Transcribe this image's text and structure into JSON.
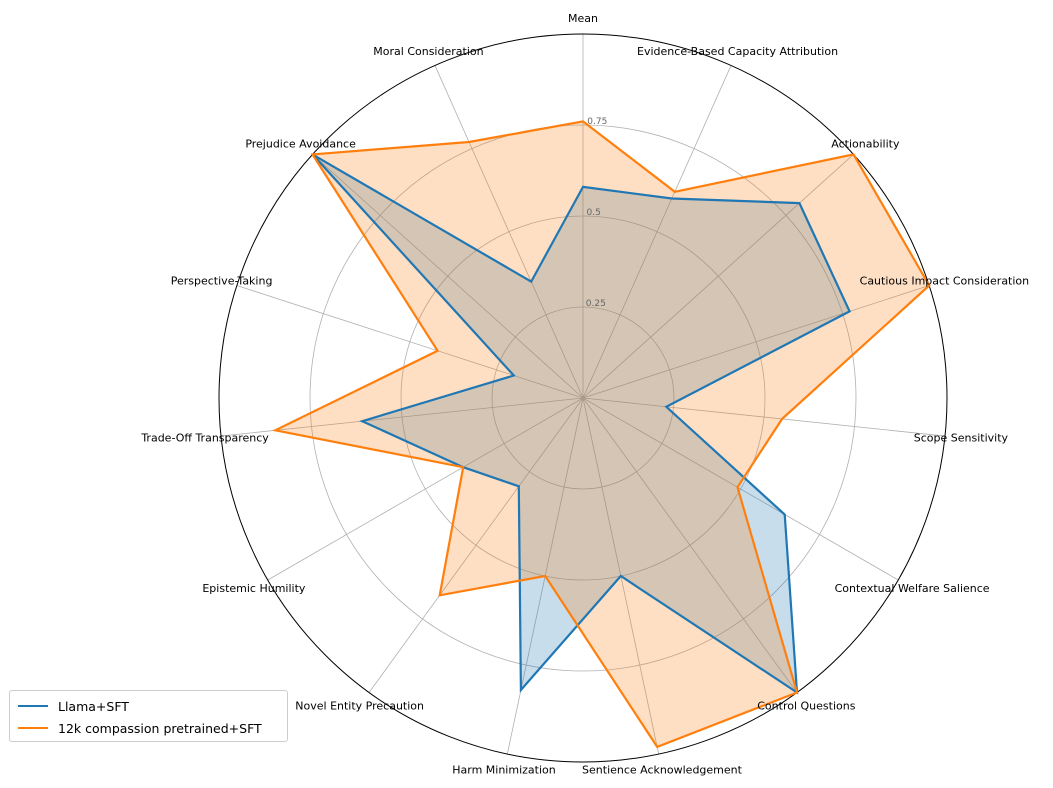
{
  "chart_data": {
    "type": "radar",
    "axes": [
      "Mean",
      "Evidence-Based Capacity Attribution",
      "Actionability",
      "Cautious Impact Consideration",
      "Scope Sensitivity",
      "Contextual Welfare Salience",
      "Control Questions",
      "Sentience Acknowledgement",
      "Harm Minimization",
      "Novel Entity Precaution",
      "Epistemic Humility",
      "Trade-Off Transparency",
      "Perspective-Taking",
      "Prejudice Avoidance",
      "Moral Consideration"
    ],
    "rlim": [
      0,
      1
    ],
    "rticks": [
      0.25,
      0.5,
      0.75
    ],
    "rtick_labels": [
      "0.25",
      "0.5",
      "0.75"
    ],
    "grid": true,
    "legend_position": "lower-left",
    "series": [
      {
        "name": "Llama+SFT",
        "color": "#1f77b4",
        "values": [
          0.58,
          0.6,
          0.8,
          0.77,
          0.23,
          0.64,
          1.0,
          0.5,
          0.82,
          0.3,
          0.38,
          0.61,
          0.2,
          1.0,
          0.35
        ]
      },
      {
        "name": "12k compassion pretrained+SFT",
        "color": "#ff7f0e",
        "values": [
          0.76,
          0.62,
          1.0,
          1.0,
          0.55,
          0.49,
          1.0,
          0.98,
          0.5,
          0.67,
          0.38,
          0.85,
          0.42,
          1.0,
          0.77
        ]
      }
    ]
  }
}
